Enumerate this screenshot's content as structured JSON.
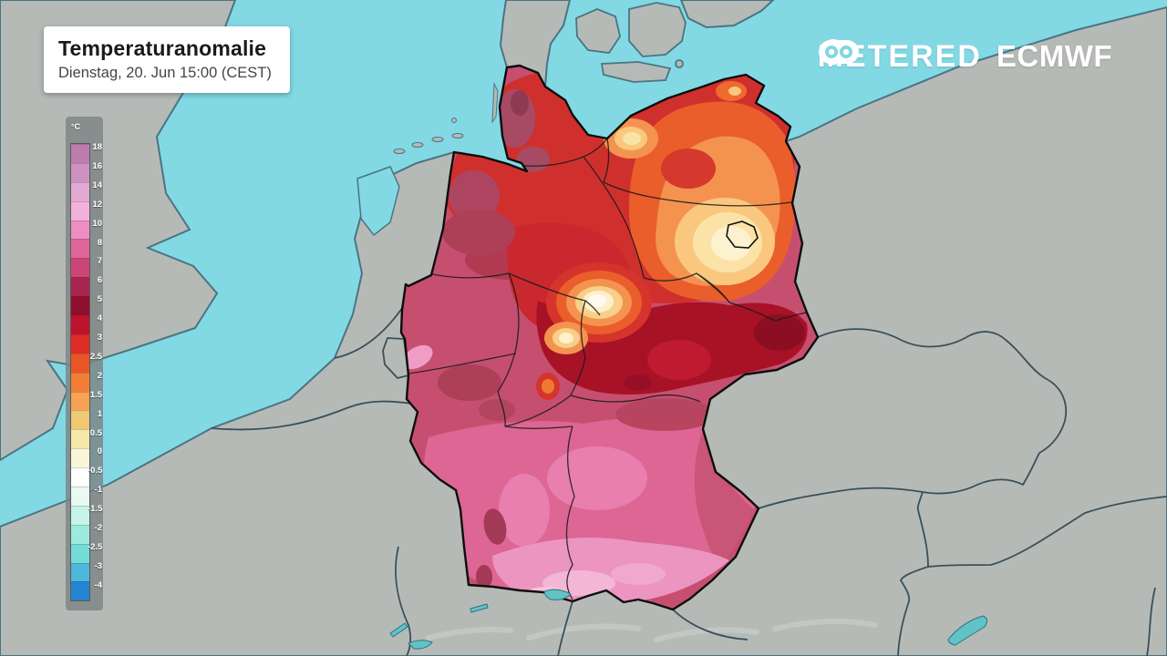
{
  "header": {
    "title": "Temperaturanomalie",
    "subtitle": "Dienstag, 20. Jun 15:00 (CEST)"
  },
  "branding": {
    "meteored_part1": "METE",
    "meteored_part2": "RED",
    "meteored_full": "METEORED",
    "ecmwf": "ECMWF"
  },
  "legend": {
    "unit": "°C",
    "tick_labels": [
      "18",
      "16",
      "14",
      "12",
      "10",
      "8",
      "7",
      "6",
      "5",
      "4",
      "3",
      "2.5",
      "2",
      "1.5",
      "1",
      "0.5",
      "0",
      "-0.5",
      "-1",
      "-1.5",
      "-2",
      "-2.5",
      "-3",
      "-4"
    ],
    "cell_colors": [
      "#bd7cae",
      "#cd92c2",
      "#e2abd4",
      "#f2b1da",
      "#ec8ec4",
      "#e0659a",
      "#cc4576",
      "#aa2450",
      "#8e0e2e",
      "#c0122c",
      "#dd2d26",
      "#ea5526",
      "#f37d36",
      "#f7a254",
      "#eec873",
      "#f4e8a8",
      "#fbf6d8",
      "#ffffff",
      "#e8faf2",
      "#c6f4e8",
      "#9debdf",
      "#72dcd8",
      "#4db7dc",
      "#2585d2"
    ]
  },
  "map": {
    "sea_color": "#82d9e4",
    "land_color": "#b6bab7",
    "coast_color": "#4b7482",
    "country_border_color": "#39505a",
    "germany_outline_color": "#0d0d0d",
    "germany_base_color": "#c64f70",
    "hotspot_core_color": "#fffaf0",
    "lake_color": "#5fc3c8"
  }
}
